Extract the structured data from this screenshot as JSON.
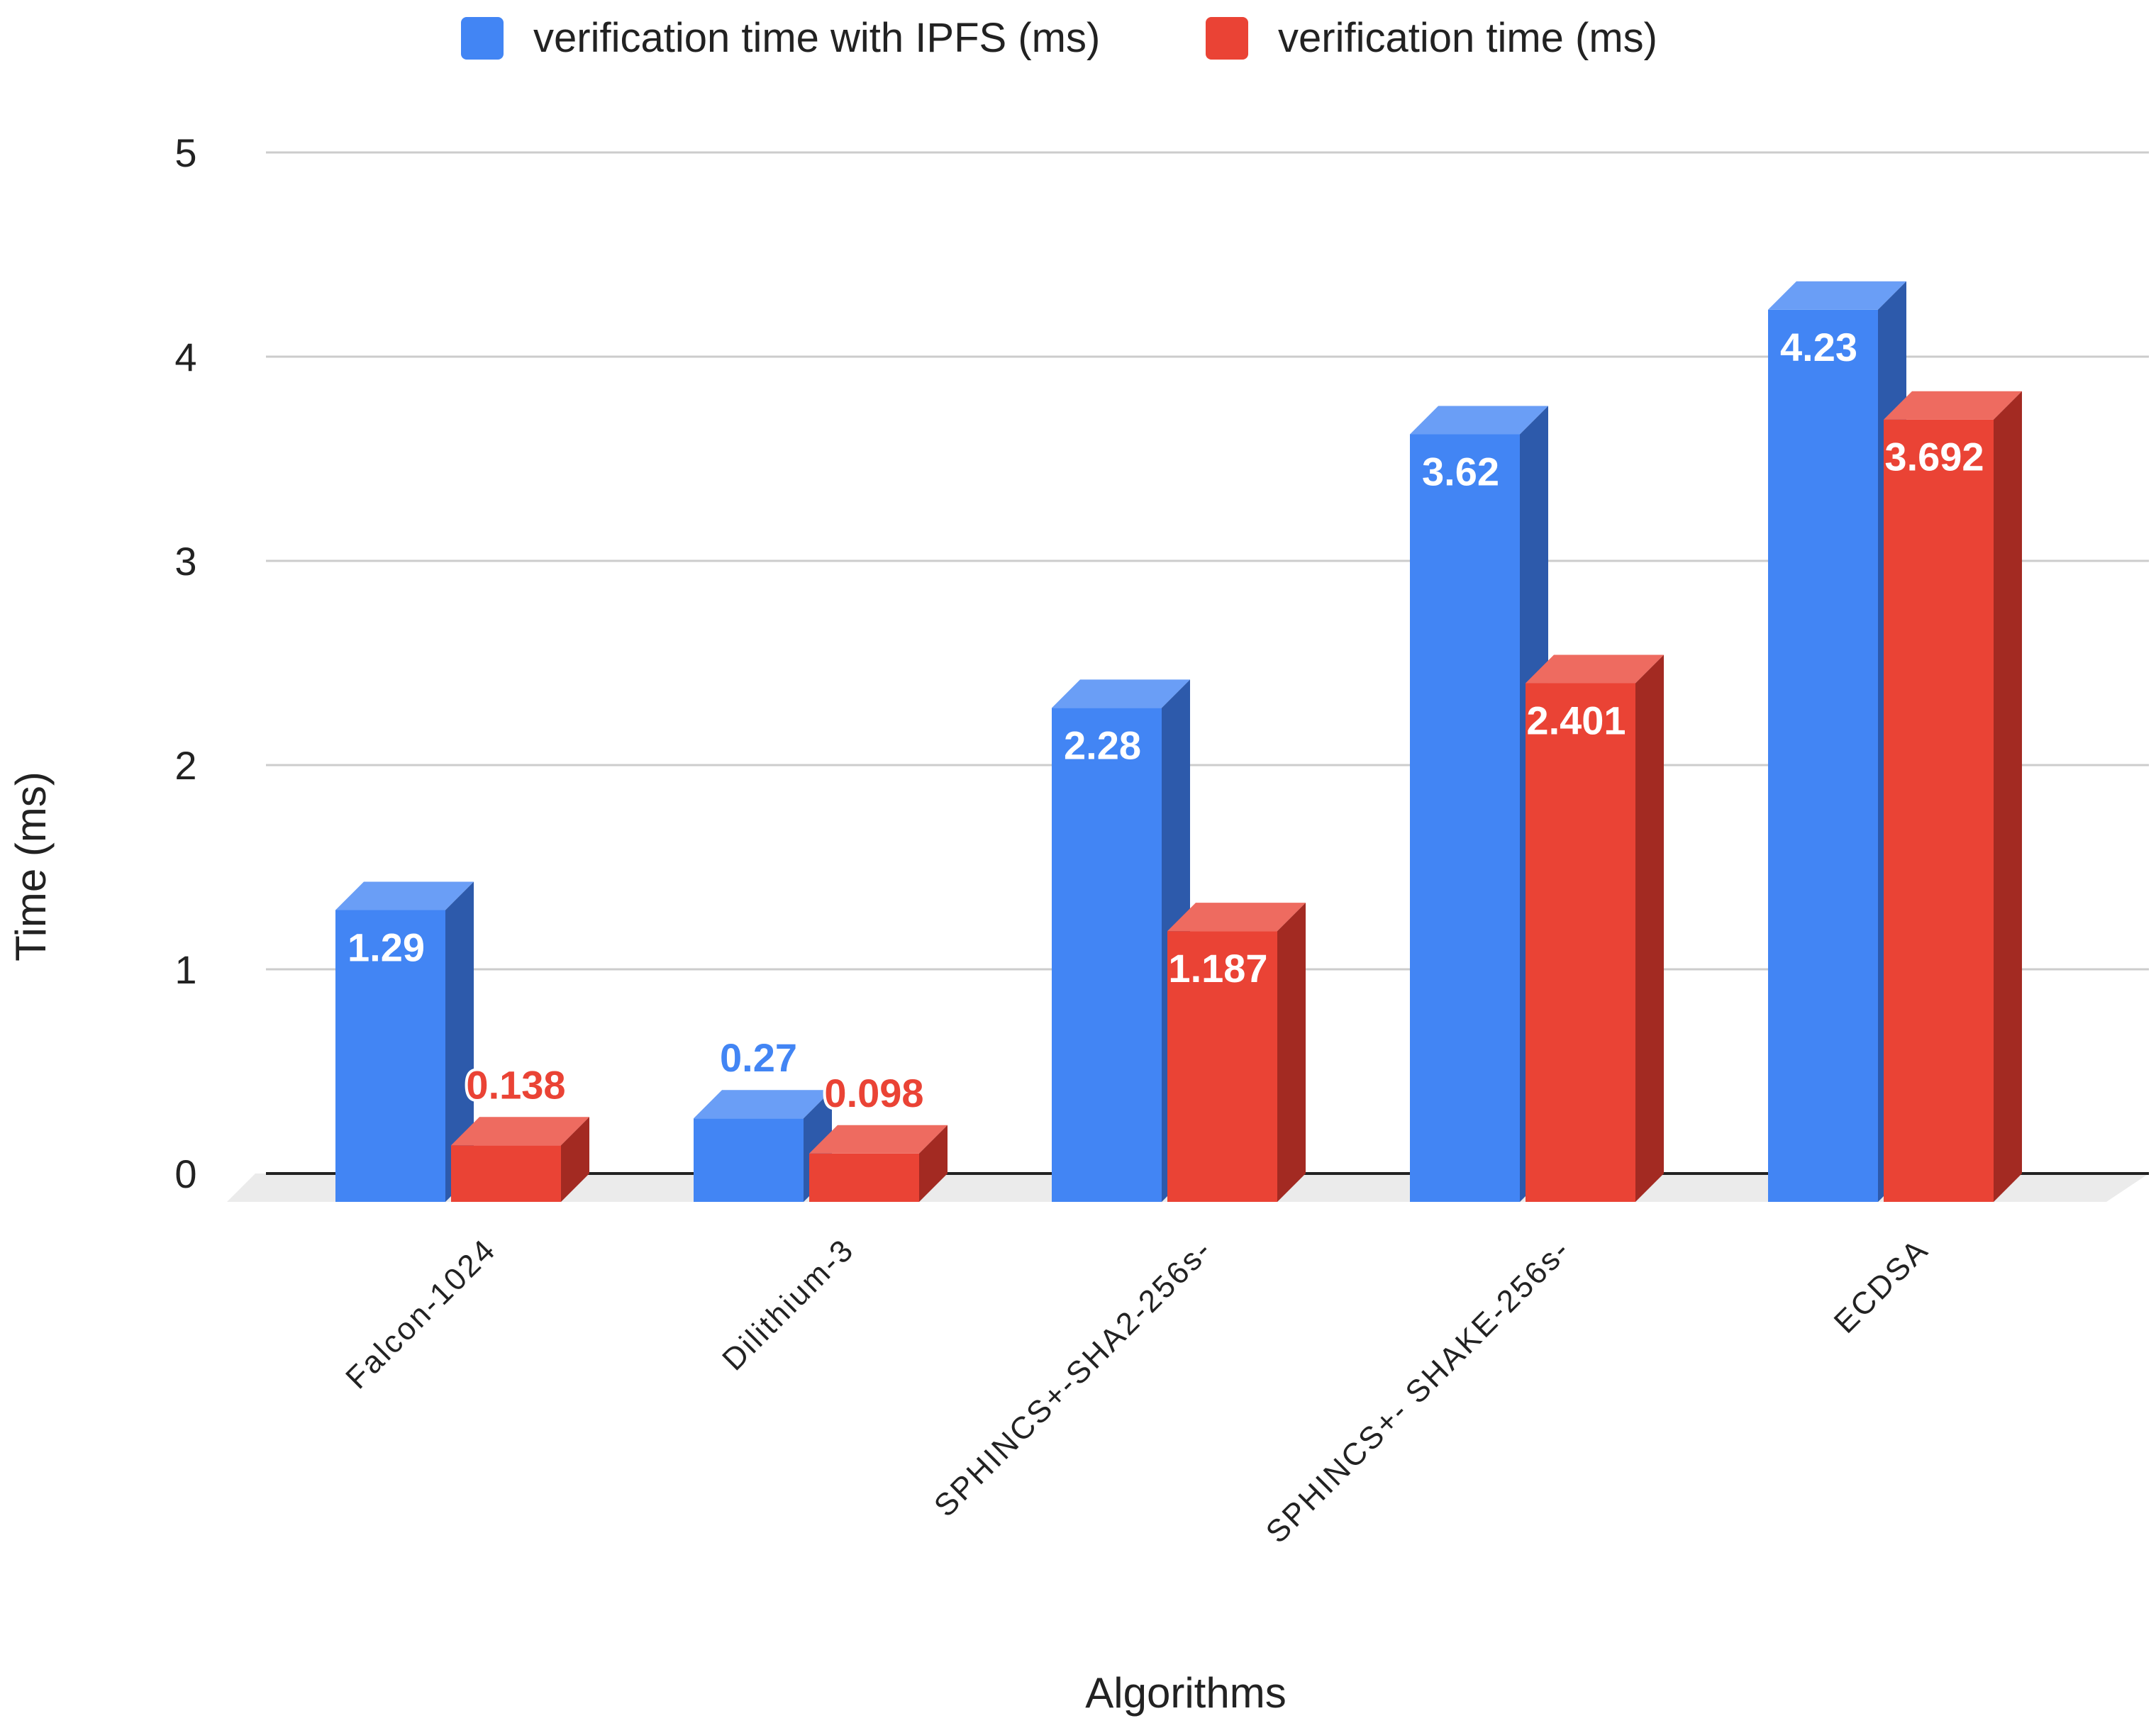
{
  "chart_data": {
    "type": "bar",
    "style": "3d-clustered-column",
    "categories": [
      "Falcon-1024",
      "Dilithium-3",
      "SPHINCS+-SHA2-256s-",
      "SPHINCS+- SHAKE-256s-",
      "ECDSA"
    ],
    "series": [
      {
        "name": "verification time with IPFS (ms)",
        "values": [
          1.29,
          0.27,
          2.28,
          3.62,
          4.23
        ],
        "labels": [
          "1.29",
          "0.27",
          "2.28",
          "3.62",
          "4.23"
        ],
        "color": "#4285f4",
        "top_color": "#6a9ef6",
        "side_color": "#2d5aab"
      },
      {
        "name": "verification time (ms)",
        "values": [
          0.138,
          0.098,
          1.187,
          2.401,
          3.692
        ],
        "labels": [
          "0.138",
          "0.098",
          "1.187",
          "2.401",
          "3.692"
        ],
        "color": "#ea4335",
        "top_color": "#ee6b60",
        "side_color": "#a32a22"
      }
    ],
    "xlabel": "Algorithms",
    "ylabel": "Time (ms)",
    "ylim": [
      0,
      5
    ],
    "yticks": [
      "0",
      "1",
      "2",
      "3",
      "4",
      "5"
    ],
    "grid": true,
    "legend_position": "top-center",
    "floor_color": "#ebebeb",
    "grid_color": "#cccccc"
  }
}
